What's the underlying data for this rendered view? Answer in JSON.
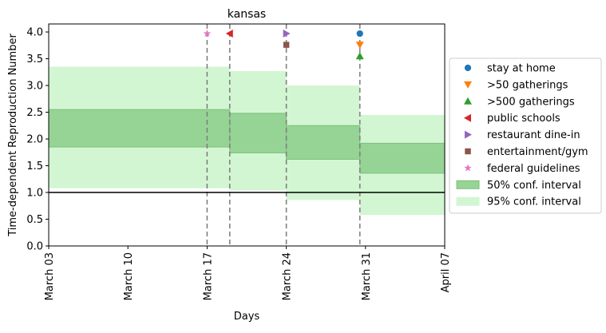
{
  "chart_data": {
    "type": "area",
    "title": "kansas",
    "xlabel": "Days",
    "ylabel": "Time-dependent Reproduction Number",
    "x_range_days": [
      0,
      35
    ],
    "ylim": [
      0,
      4.15
    ],
    "x_ticks": [
      {
        "day": 0,
        "label": "March 03"
      },
      {
        "day": 7,
        "label": "March 10"
      },
      {
        "day": 14,
        "label": "March 17"
      },
      {
        "day": 21,
        "label": "March 24"
      },
      {
        "day": 28,
        "label": "March 31"
      },
      {
        "day": 35,
        "label": "April 07"
      }
    ],
    "y_ticks": [
      0.0,
      0.5,
      1.0,
      1.5,
      2.0,
      2.5,
      3.0,
      3.5,
      4.0
    ],
    "y_tick_labels": [
      "0.0",
      "0.5",
      "1.0",
      "1.5",
      "2.0",
      "2.5",
      "3.0",
      "3.5",
      "4.0"
    ],
    "reference_line": 1.0,
    "segments": [
      {
        "start": -0.8,
        "end": 16.0,
        "ci50": [
          1.85,
          2.55
        ],
        "ci95": [
          1.08,
          3.35
        ]
      },
      {
        "start": 16.0,
        "end": 21.0,
        "ci50": [
          1.74,
          2.48
        ],
        "ci95": [
          1.04,
          3.27
        ]
      },
      {
        "start": 21.0,
        "end": 27.5,
        "ci50": [
          1.62,
          2.25
        ],
        "ci95": [
          0.86,
          3.0
        ]
      },
      {
        "start": 27.5,
        "end": 35.0,
        "ci50": [
          1.36,
          1.92
        ],
        "ci95": [
          0.58,
          2.45
        ]
      }
    ],
    "interventions": [
      {
        "series": "stay at home",
        "day": 27.5,
        "value": 3.97
      },
      {
        "series": ">50 gatherings",
        "day": 27.5,
        "value": 3.76
      },
      {
        "series": ">500 gatherings",
        "day": 27.5,
        "value": 3.55
      },
      {
        "series": "public schools",
        "day": 16.0,
        "value": 3.97
      },
      {
        "series": "restaurant dine-in",
        "day": 21.0,
        "value": 3.97
      },
      {
        "series": "entertainment/gym",
        "day": 21.0,
        "value": 3.76
      },
      {
        "series": "federal guidelines",
        "day": 14.0,
        "value": 3.97
      }
    ],
    "intervention_lines": [
      14.0,
      16.0,
      21.0,
      27.5
    ],
    "legend": [
      {
        "label": "stay at home",
        "marker": "circle",
        "color": "#1f77b4"
      },
      {
        "label": ">50 gatherings",
        "marker": "triangle-down",
        "color": "#ff7f0e"
      },
      {
        "label": ">500 gatherings",
        "marker": "triangle-up",
        "color": "#2ca02c"
      },
      {
        "label": "public schools",
        "marker": "triangle-left",
        "color": "#d62728"
      },
      {
        "label": "restaurant dine-in",
        "marker": "triangle-right",
        "color": "#9467bd"
      },
      {
        "label": "entertainment/gym",
        "marker": "square",
        "color": "#8c564b"
      },
      {
        "label": "federal guidelines",
        "marker": "star",
        "color": "#e377c2"
      },
      {
        "label": "50% conf. interval",
        "marker": "patch",
        "color": "#95d495"
      },
      {
        "label": "95% conf. interval",
        "marker": "patch",
        "color": "#d2f6d2"
      }
    ],
    "legend_position": "right",
    "grid": false,
    "colors": {
      "ci50_fill": "#95d495",
      "ci50_edge": "#7cc07c",
      "ci95_fill": "#d2f6d2",
      "vline": "#808080"
    }
  }
}
